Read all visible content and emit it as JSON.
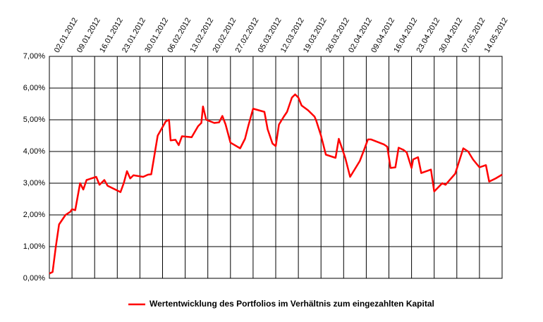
{
  "chart_data": {
    "type": "line",
    "x": [
      0,
      1,
      2,
      3,
      5,
      6.5,
      7,
      8,
      9.5,
      10.5,
      11.5,
      14.5,
      15.5,
      17,
      18,
      22,
      23,
      24,
      25,
      26,
      29,
      30.5,
      31.5,
      33.5,
      36,
      37,
      37.5,
      39,
      40,
      41,
      44,
      46,
      47,
      47.5,
      48.5,
      51,
      52.5,
      53.5,
      54.5,
      56,
      59,
      60.5,
      61.5,
      63,
      66.5,
      67.5,
      69,
      70,
      71,
      72.5,
      73.5,
      75,
      76,
      77,
      78,
      80,
      82,
      82.5,
      84,
      85.5,
      88.5,
      89.5,
      91,
      91.5,
      93,
      94.5,
      96,
      97.5,
      98.5,
      99.5,
      103.5,
      104.5,
      105.5,
      107,
      108,
      109.5,
      110.5,
      112,
      112.5,
      114,
      115,
      118,
      119,
      121.5,
      122.5,
      125.5,
      128,
      129.5,
      131,
      133,
      135,
      136,
      138,
      140
    ],
    "series": [
      {
        "name": "Wertentwicklung des Portfolios im Verhältnis zum eingezahlten Kapital",
        "color": "#ff0000",
        "values": [
          0.15,
          0.2,
          1.0,
          1.7,
          2.0,
          2.1,
          2.18,
          2.15,
          3.0,
          2.8,
          3.1,
          3.2,
          2.95,
          3.1,
          2.92,
          2.72,
          3.0,
          3.38,
          3.15,
          3.25,
          3.2,
          3.27,
          3.28,
          4.5,
          4.95,
          5.0,
          4.35,
          4.37,
          4.2,
          4.48,
          4.45,
          4.8,
          4.9,
          5.42,
          5.0,
          4.9,
          4.92,
          5.12,
          4.85,
          4.28,
          4.1,
          4.4,
          4.8,
          5.35,
          5.25,
          4.7,
          4.25,
          4.17,
          4.85,
          5.1,
          5.25,
          5.7,
          5.8,
          5.7,
          5.45,
          5.3,
          5.1,
          4.98,
          4.5,
          3.9,
          3.8,
          4.4,
          3.95,
          3.8,
          3.2,
          3.45,
          3.7,
          4.1,
          4.38,
          4.38,
          4.22,
          4.15,
          3.48,
          3.5,
          4.12,
          4.05,
          3.97,
          3.48,
          3.75,
          3.82,
          3.32,
          3.43,
          2.74,
          3.0,
          2.95,
          3.3,
          4.1,
          4.0,
          3.75,
          3.5,
          3.57,
          3.05,
          3.15,
          3.27
        ]
      }
    ],
    "xlim": [
      0,
      140
    ],
    "xticks": [
      {
        "value": 7,
        "label": "02.01.2012"
      },
      {
        "value": 14,
        "label": "09.01.2012"
      },
      {
        "value": 21,
        "label": "16.01.2012"
      },
      {
        "value": 28,
        "label": "23.01.2012"
      },
      {
        "value": 35,
        "label": "30.01.2012"
      },
      {
        "value": 42,
        "label": "06.02.2012"
      },
      {
        "value": 49,
        "label": "13.02.2012"
      },
      {
        "value": 56,
        "label": "20.02.2012"
      },
      {
        "value": 63,
        "label": "27.02.2012"
      },
      {
        "value": 70,
        "label": "05.03.2012"
      },
      {
        "value": 77,
        "label": "12.03.2012"
      },
      {
        "value": 84,
        "label": "19.03.2012"
      },
      {
        "value": 91,
        "label": "26.03.2012"
      },
      {
        "value": 98,
        "label": "02.04.2012"
      },
      {
        "value": 105,
        "label": "09.04.2012"
      },
      {
        "value": 112,
        "label": "16.04.2012"
      },
      {
        "value": 119,
        "label": "23.04.2012"
      },
      {
        "value": 126,
        "label": "30.04.2012"
      },
      {
        "value": 133,
        "label": "07.05.2012"
      },
      {
        "value": 140,
        "label": "14.05.2012"
      }
    ],
    "ylim": [
      0,
      7
    ],
    "yticks": [
      {
        "value": 0,
        "label": "0,00%"
      },
      {
        "value": 1,
        "label": "1,00%"
      },
      {
        "value": 2,
        "label": "2,00%"
      },
      {
        "value": 3,
        "label": "3,00%"
      },
      {
        "value": 4,
        "label": "4,00%"
      },
      {
        "value": 5,
        "label": "5,00%"
      },
      {
        "value": 6,
        "label": "6,00%"
      },
      {
        "value": 7,
        "label": "7,00%"
      }
    ],
    "grid": true,
    "legend": "bottom"
  }
}
